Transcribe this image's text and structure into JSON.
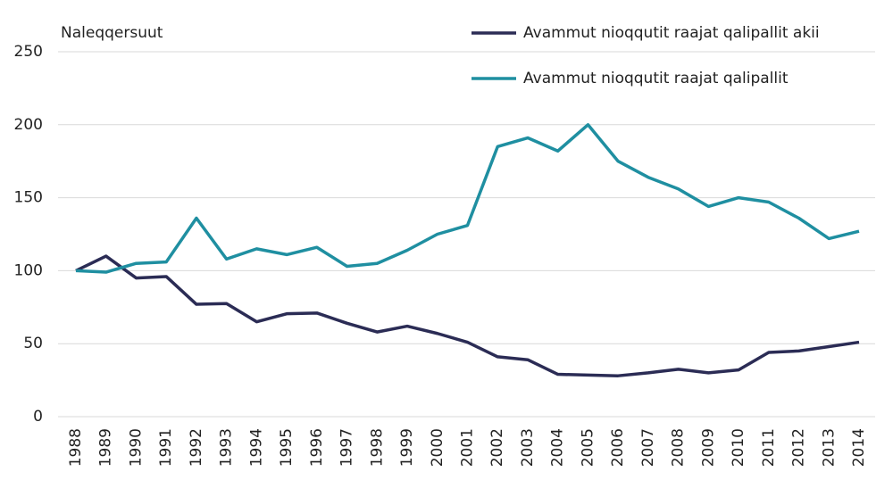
{
  "chart_data": {
    "type": "line",
    "y_label": "Naleqqersuut",
    "categories": [
      "1988",
      "1989",
      "1990",
      "1991",
      "1992",
      "1993",
      "1994",
      "1995",
      "1996",
      "1997",
      "1998",
      "1999",
      "2000",
      "2001",
      "2002",
      "2003",
      "2004",
      "2005",
      "2006",
      "2007",
      "2008",
      "2009",
      "2010",
      "2011",
      "2012",
      "2013",
      "2014"
    ],
    "series": [
      {
        "name": "Avammut nioqqutit raajat qalipallit akii",
        "color": "#2b2c55",
        "values": [
          100,
          110,
          95,
          96,
          77,
          77.5,
          65,
          70.5,
          71,
          64,
          58,
          62,
          57,
          51,
          41,
          39,
          29,
          28.5,
          28,
          30,
          32.5,
          30,
          32,
          44,
          45,
          48,
          51
        ]
      },
      {
        "name": "Avammut nioqqutit raajat qalipallit",
        "color": "#1f8fa1",
        "values": [
          100,
          99,
          105,
          106,
          136,
          108,
          115,
          111,
          116,
          103,
          105,
          114,
          125,
          131,
          185,
          191,
          182,
          200,
          175,
          164,
          156,
          144,
          150,
          147,
          136,
          122,
          127
        ]
      }
    ],
    "ylim": [
      0,
      250
    ],
    "yticks": [
      0,
      50,
      100,
      150,
      200,
      250
    ],
    "grid": true
  }
}
